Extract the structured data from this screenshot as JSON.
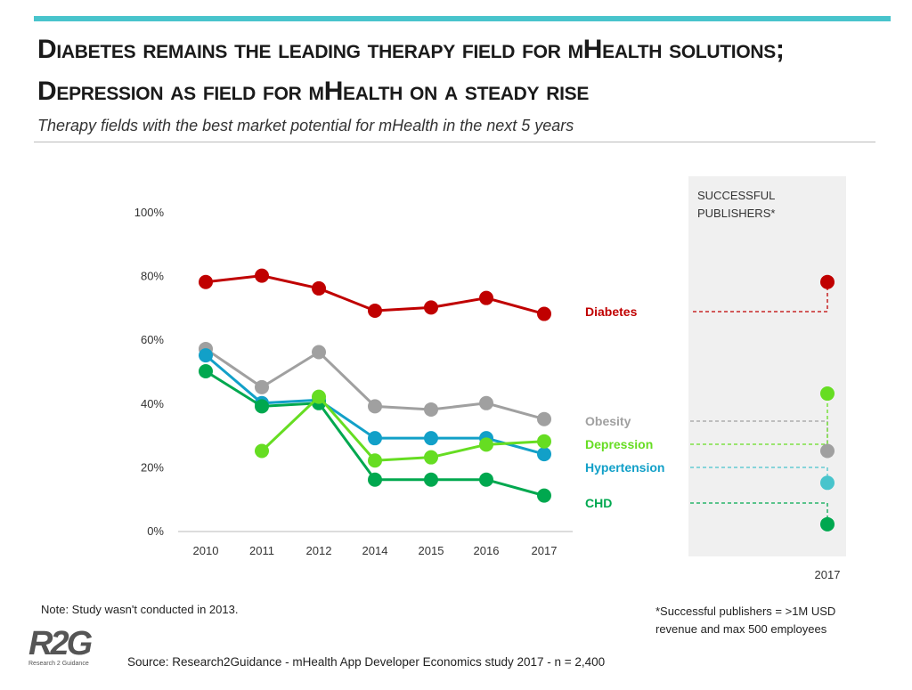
{
  "header": {
    "title": "Diabetes remains the leading therapy field for mHealth solutions; Depression as field for mHealth on a steady rise",
    "subtitle": "Therapy fields with the best market potential for mHealth in the next 5 years",
    "accent_color": "#48c4cc"
  },
  "chart_data": {
    "type": "line",
    "x": [
      "2010",
      "2011",
      "2012",
      "2014",
      "2015",
      "2016",
      "2017"
    ],
    "yticks": [
      "0%",
      "20%",
      "40%",
      "60%",
      "80%",
      "100%"
    ],
    "ylim": [
      0,
      100
    ],
    "grid": false,
    "series": [
      {
        "name": "Diabetes",
        "color": "#c00000",
        "values": [
          78,
          80,
          76,
          69,
          70,
          73,
          68
        ]
      },
      {
        "name": "Obesity",
        "color": "#a0a0a0",
        "values": [
          57,
          45,
          56,
          39,
          38,
          40,
          35
        ]
      },
      {
        "name": "Depression",
        "color": "#66dd22",
        "values": [
          null,
          25,
          42,
          22,
          23,
          27,
          28
        ]
      },
      {
        "name": "Hypertension",
        "color": "#12a0c8",
        "values": [
          55,
          40,
          41,
          29,
          29,
          29,
          24
        ]
      },
      {
        "name": "CHD",
        "color": "#00a84f",
        "values": [
          50,
          39,
          40,
          16,
          16,
          16,
          11
        ]
      }
    ],
    "panel": {
      "title": "SUCCESSFUL PUBLISHERS*",
      "x": "2017",
      "values": {
        "Diabetes": 78,
        "Obesity": 25,
        "Depression": 43,
        "Hypertension": 15,
        "CHD": 2
      },
      "background": "#f0f0f0"
    }
  },
  "notes": {
    "note": "Note: Study wasn't conducted in 2013.",
    "footnote_1": "*Successful publishers = >1M USD",
    "footnote_2": "revenue and max 500 employees",
    "source": "Source: Research2Guidance - mHealth App Developer Economics study 2017 - n = 2,400"
  },
  "logo": {
    "mark": "R2G",
    "text": "Research 2 Guidance"
  }
}
